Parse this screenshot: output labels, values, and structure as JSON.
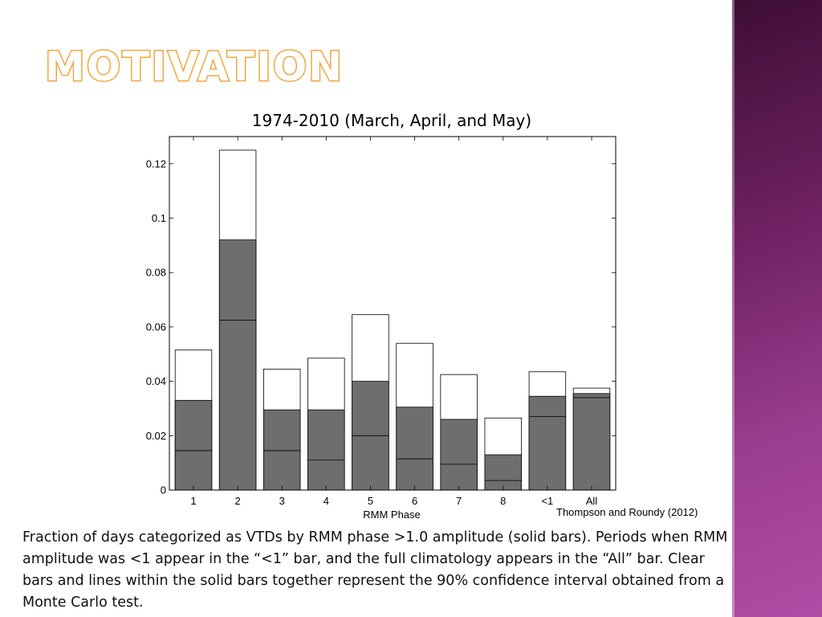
{
  "slide": {
    "title": "MOTIVATION",
    "source_note": "Thompson and Roundy (2012)",
    "caption": "Fraction of days categorized as VTDs by RMM phase >1.0 amplitude (solid bars). Periods when RMM amplitude was <1 appear in the “<1” bar, and the full climatology appears in the “All” bar. Clear bars and lines within the solid bars together represent the 90% confidence interval obtained from a Monte Carlo test.",
    "band_colors": [
      "#3e0e34",
      "#b04ca5"
    ],
    "title_color": "#f2a33a"
  },
  "chart_data": {
    "type": "bar",
    "title": "1974-2010 (March, April, and May)",
    "xlabel": "RMM Phase",
    "ylabel": "",
    "categories": [
      "1",
      "2",
      "3",
      "4",
      "5",
      "6",
      "7",
      "8",
      "<1",
      "All"
    ],
    "ylim": [
      0,
      0.13
    ],
    "yticks": [
      0,
      0.02,
      0.04,
      0.06,
      0.08,
      0.1,
      0.12
    ],
    "ytick_labels": [
      "0",
      "0.02",
      "0.04",
      "0.06",
      "0.08",
      "0.1",
      "0.12"
    ],
    "series": [
      {
        "values": [
          0.033,
          0.092,
          0.0295,
          0.0295,
          0.04,
          0.0305,
          0.026,
          0.013,
          0.0345,
          0.0355
        ],
        "color": "#6e6e6e"
      }
    ],
    "ci_upper": [
      0.0515,
      0.125,
      0.0445,
      0.0485,
      0.0645,
      0.054,
      0.0425,
      0.0265,
      0.0435,
      0.0375
    ],
    "ci_lower": [
      0.0145,
      0.0625,
      0.0145,
      0.011,
      0.02,
      0.0115,
      0.0095,
      0.0035,
      0.027,
      0.034
    ],
    "grid": false
  }
}
